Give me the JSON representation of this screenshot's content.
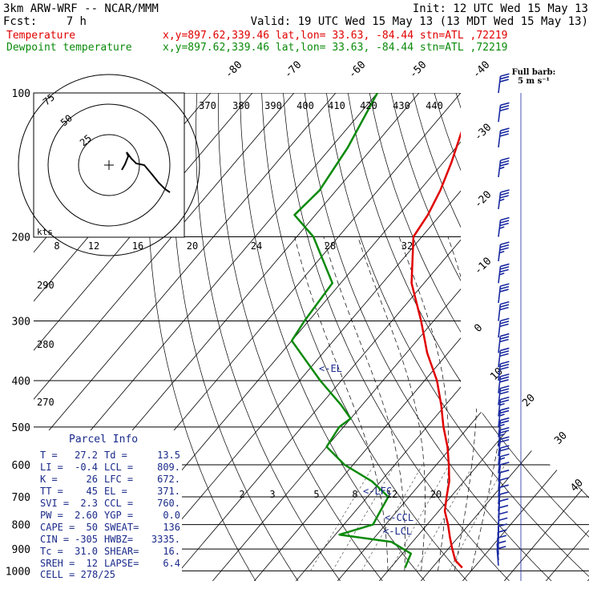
{
  "header": {
    "model": "3km ARW-WRF -- NCAR/MMM",
    "init": "Init: 12 UTC Wed 15 May 13",
    "fcst_label": "Fcst:",
    "fcst_value": "7 h",
    "valid": "Valid: 19 UTC Wed 15 May 13 (13 MDT Wed 15 May 13)",
    "temp_label": "Temperature",
    "dewp_label": "Dewpoint temperature",
    "location_info": "x,y=897.62,339.46   lat,lon= 33.63, -84.44   stn=ATL ,72219"
  },
  "colors": {
    "temperature": "#e00000",
    "dewpoint": "#0a8a0a",
    "text_blue": "#1a2a8a",
    "grid": "#000000",
    "wind": "#1a2aa0"
  },
  "barb_legend": {
    "line1": "Full barb:",
    "line2": "5 m s⁻¹"
  },
  "chart_data": {
    "type": "skew-t",
    "pressure_ticks": [
      "100",
      "200",
      "300",
      "400",
      "500",
      "600",
      "700",
      "800",
      "900",
      "1000"
    ],
    "isotherm_labels": [
      "-80",
      "-70",
      "-60",
      "-50",
      "-40",
      "-30",
      "-20",
      "-10",
      "0",
      "10",
      "20",
      "30",
      "40"
    ],
    "theta_labels": [
      "370",
      "380",
      "390",
      "400",
      "410",
      "420",
      "430",
      "440"
    ],
    "mixing_ratio_top_labels": [
      "8",
      "12",
      "16",
      "20",
      "24",
      "28",
      "32"
    ],
    "mixing_ratio_low_labels": [
      "2",
      "3",
      "5",
      "8",
      "12",
      "20"
    ],
    "dry_adiabat_side_labels": [
      "290",
      "280",
      "270"
    ],
    "hodograph": {
      "unit_label": "kts",
      "ring_labels": [
        "25",
        "50",
        "75"
      ]
    },
    "markers": {
      "el": "<-EL",
      "lfc": "<-LFC",
      "ccl": "<-CCL",
      "lcl": "<-LCL"
    },
    "temperature_profile": [
      [
        100,
        -67
      ],
      [
        120,
        -62
      ],
      [
        140,
        -58
      ],
      [
        160,
        -55
      ],
      [
        180,
        -53
      ],
      [
        200,
        -52
      ],
      [
        250,
        -43
      ],
      [
        300,
        -33
      ],
      [
        350,
        -25
      ],
      [
        400,
        -17
      ],
      [
        450,
        -11
      ],
      [
        500,
        -6
      ],
      [
        550,
        -1
      ],
      [
        600,
        3
      ],
      [
        650,
        6.5
      ],
      [
        700,
        9
      ],
      [
        750,
        11.5
      ],
      [
        800,
        15
      ],
      [
        850,
        18
      ],
      [
        900,
        21
      ],
      [
        950,
        24
      ],
      [
        985,
        27.2
      ]
    ],
    "dewpoint_profile": [
      [
        100,
        -90
      ],
      [
        130,
        -86
      ],
      [
        160,
        -84
      ],
      [
        180,
        -85
      ],
      [
        200,
        -76
      ],
      [
        250,
        -62
      ],
      [
        300,
        -61
      ],
      [
        330,
        -60
      ],
      [
        400,
        -45
      ],
      [
        450,
        -35
      ],
      [
        480,
        -30
      ],
      [
        500,
        -31
      ],
      [
        550,
        -30
      ],
      [
        600,
        -22
      ],
      [
        650,
        -12
      ],
      [
        700,
        -5
      ],
      [
        750,
        -4
      ],
      [
        800,
        -3
      ],
      [
        840,
        -9
      ],
      [
        870,
        5
      ],
      [
        920,
        12
      ],
      [
        985,
        13.5
      ]
    ],
    "winds_kt": [
      [
        100,
        260,
        30
      ],
      [
        115,
        260,
        30
      ],
      [
        130,
        262,
        32
      ],
      [
        150,
        265,
        35
      ],
      [
        175,
        265,
        35
      ],
      [
        200,
        262,
        35
      ],
      [
        225,
        260,
        35
      ],
      [
        250,
        258,
        35
      ],
      [
        275,
        255,
        32
      ],
      [
        300,
        255,
        32
      ],
      [
        325,
        255,
        32
      ],
      [
        350,
        255,
        30
      ],
      [
        375,
        255,
        30
      ],
      [
        400,
        255,
        30
      ],
      [
        425,
        255,
        28
      ],
      [
        450,
        255,
        28
      ],
      [
        475,
        255,
        25
      ],
      [
        500,
        255,
        25
      ],
      [
        525,
        255,
        25
      ],
      [
        550,
        255,
        25
      ],
      [
        575,
        255,
        22
      ],
      [
        600,
        255,
        20
      ],
      [
        625,
        255,
        15
      ],
      [
        650,
        255,
        12
      ],
      [
        675,
        250,
        10
      ],
      [
        700,
        245,
        10
      ],
      [
        725,
        240,
        10
      ],
      [
        750,
        240,
        10
      ],
      [
        775,
        235,
        8
      ],
      [
        800,
        230,
        8
      ],
      [
        825,
        225,
        8
      ],
      [
        850,
        220,
        8
      ],
      [
        875,
        215,
        8
      ],
      [
        900,
        210,
        8
      ],
      [
        925,
        205,
        8
      ],
      [
        950,
        200,
        8
      ],
      [
        975,
        200,
        8
      ]
    ]
  },
  "parcel_info": {
    "title": "Parcel Info",
    "rows": [
      [
        "T  =",
        "27.2",
        "Td =",
        "13.5"
      ],
      [
        "LI =",
        "-0.4",
        "LCL =",
        "809."
      ],
      [
        "K  =",
        "26",
        "LFC =",
        "672."
      ],
      [
        "TT =",
        "45",
        "EL  =",
        "371."
      ],
      [
        "SVI =",
        "2.3",
        "CCL =",
        "760."
      ],
      [
        "PW =",
        "2.60",
        "YGP =",
        "0.0"
      ],
      [
        "CAPE =",
        "50",
        "SWEAT=",
        "136"
      ],
      [
        "CIN =",
        "-305",
        "HWBZ=",
        "3335."
      ],
      [
        "Tc =",
        "31.0",
        "SHEAR=",
        "16."
      ],
      [
        "SREH =",
        "12",
        "LAPSE=",
        "6.4"
      ]
    ],
    "cell": "CELL = 278/25"
  }
}
